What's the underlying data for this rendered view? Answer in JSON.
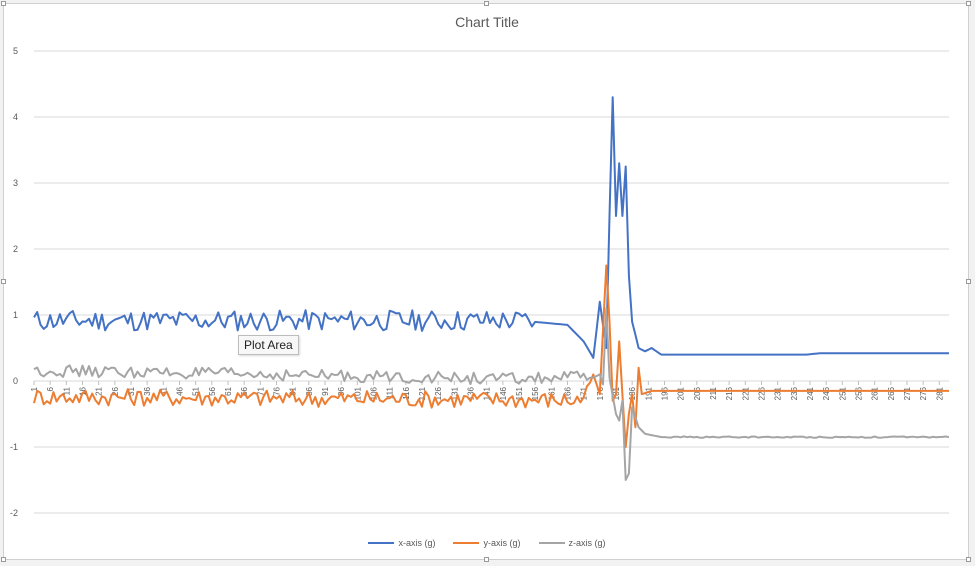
{
  "chart_data": {
    "type": "line",
    "title": "Chart Title",
    "xlabel": "",
    "ylabel": "",
    "ylim": [
      -2,
      5
    ],
    "yticks": [
      "5",
      "4",
      "3",
      "2",
      "1",
      "0",
      "-1",
      "-2"
    ],
    "xtick_labels": [
      "1",
      "6",
      "11",
      "16",
      "21",
      "26",
      "31",
      "36",
      "41",
      "46",
      "51",
      "56",
      "61",
      "66",
      "71",
      "76",
      "81",
      "86",
      "91",
      "96",
      "101",
      "106",
      "111",
      "116",
      "121",
      "126",
      "131",
      "136",
      "141",
      "146",
      "151",
      "156",
      "161",
      "166",
      "171",
      "176",
      "181",
      "186",
      "191",
      "196",
      "201",
      "206",
      "211",
      "216",
      "221",
      "226",
      "231",
      "236",
      "241",
      "246",
      "251",
      "256",
      "261",
      "266",
      "271",
      "276",
      "281"
    ],
    "grid": true,
    "legend_position": "bottom",
    "series": [
      {
        "name": "x-axis (g)",
        "color": "#4472C4",
        "keypoints": [
          [
            1,
            0.9
          ],
          [
            155,
            0.9
          ],
          [
            166,
            0.85
          ],
          [
            171,
            0.6
          ],
          [
            174,
            0.35
          ],
          [
            176,
            1.2
          ],
          [
            178,
            0.5
          ],
          [
            179,
            2.5
          ],
          [
            180,
            4.3
          ],
          [
            181,
            2.5
          ],
          [
            182,
            3.3
          ],
          [
            183,
            2.5
          ],
          [
            184,
            3.25
          ],
          [
            185,
            1.6
          ],
          [
            186,
            0.9
          ],
          [
            188,
            0.5
          ],
          [
            190,
            0.45
          ],
          [
            192,
            0.5
          ],
          [
            195,
            0.4
          ],
          [
            200,
            0.4
          ],
          [
            240,
            0.4
          ],
          [
            244,
            0.42
          ],
          [
            284,
            0.42
          ]
        ]
      },
      {
        "name": "y-axis (g)",
        "color": "#ED7D31",
        "keypoints": [
          [
            1,
            -0.25
          ],
          [
            170,
            -0.3
          ],
          [
            172,
            -0.15
          ],
          [
            174,
            0.1
          ],
          [
            176,
            -0.2
          ],
          [
            178,
            1.75
          ],
          [
            179,
            0.9
          ],
          [
            180,
            -0.3
          ],
          [
            181,
            -0.2
          ],
          [
            182,
            0.6
          ],
          [
            183,
            -0.2
          ],
          [
            184,
            -1.0
          ],
          [
            185,
            -0.5
          ],
          [
            186,
            -0.2
          ],
          [
            187,
            -0.7
          ],
          [
            188,
            0.2
          ],
          [
            189,
            -0.2
          ],
          [
            192,
            -0.15
          ],
          [
            284,
            -0.15
          ]
        ]
      },
      {
        "name": "z-axis (g)",
        "color": "#A5A5A5",
        "keypoints": [
          [
            1,
            0.15
          ],
          [
            150,
            0.02
          ],
          [
            170,
            0.05
          ],
          [
            174,
            0.05
          ],
          [
            176,
            0.1
          ],
          [
            177,
            -0.05
          ],
          [
            178,
            1.1
          ],
          [
            179,
            0.05
          ],
          [
            181,
            -0.5
          ],
          [
            182,
            -0.6
          ],
          [
            183,
            -0.3
          ],
          [
            184,
            -1.5
          ],
          [
            185,
            -1.4
          ],
          [
            186,
            -0.4
          ],
          [
            188,
            -0.7
          ],
          [
            190,
            -0.8
          ],
          [
            195,
            -0.85
          ],
          [
            284,
            -0.85
          ]
        ]
      }
    ]
  },
  "tooltip": {
    "text": "Plot Area"
  }
}
